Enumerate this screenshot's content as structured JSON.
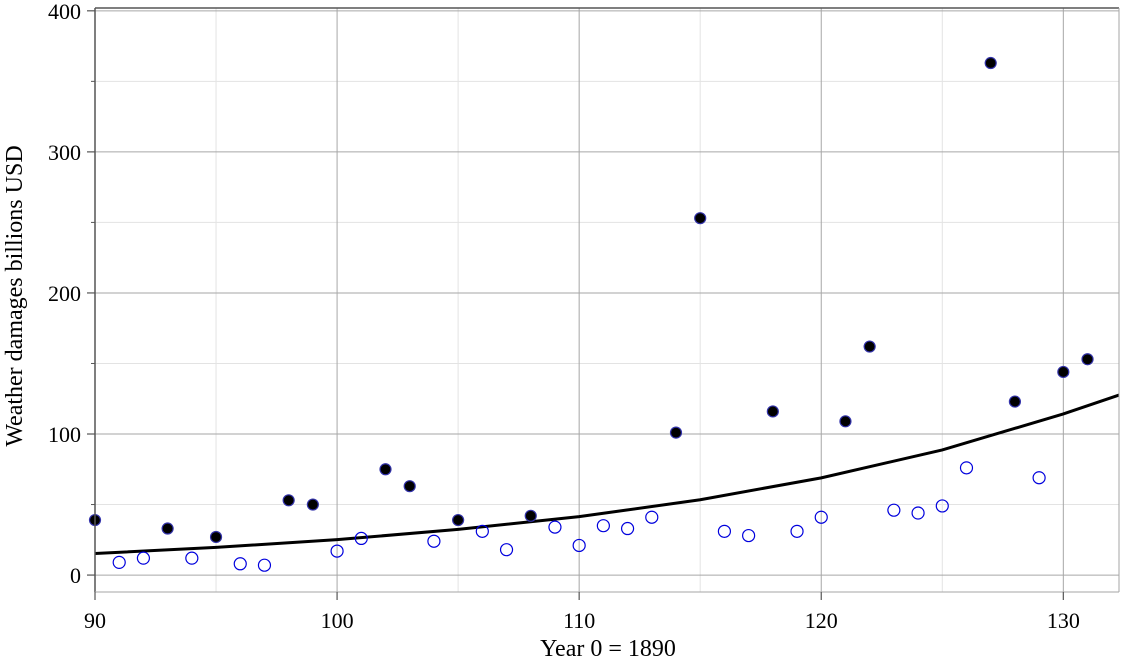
{
  "chart_data": {
    "type": "scatter",
    "title": "",
    "xlabel": "Year 0 = 1890",
    "ylabel": "Weather damages billions USD",
    "xlim": [
      90,
      132.3
    ],
    "ylim": [
      -12,
      402
    ],
    "x_ticks": [
      90,
      100,
      110,
      120,
      130
    ],
    "x_tick_labels": [
      "90",
      "100",
      "110",
      "120",
      "130"
    ],
    "y_ticks": [
      0,
      100,
      200,
      300,
      400
    ],
    "y_tick_labels": [
      "0",
      "100",
      "200",
      "300",
      "400"
    ],
    "grid": true,
    "legend": "none",
    "series": [
      {
        "marker": "open-circle",
        "x": [
          91,
          92,
          94,
          96,
          97,
          100,
          101,
          104,
          106,
          107,
          109,
          110,
          111,
          112,
          113,
          116,
          117,
          119,
          120,
          123,
          124,
          125,
          126,
          129
        ],
        "y": [
          9,
          12,
          12,
          8,
          7,
          17,
          26,
          24,
          31,
          18,
          34,
          21,
          35,
          33,
          41,
          31,
          28,
          31,
          41,
          46,
          44,
          49,
          76,
          69
        ]
      },
      {
        "marker": "filled-circle",
        "x": [
          90,
          93,
          95,
          98,
          99,
          102,
          103,
          105,
          108,
          114,
          115,
          118,
          121,
          122,
          127,
          128,
          130,
          131
        ],
        "y": [
          39,
          33,
          27,
          53,
          50,
          75,
          63,
          39,
          42,
          101,
          253,
          116,
          109,
          162,
          363,
          123,
          144,
          153
        ]
      }
    ],
    "trend_curve": {
      "type": "exponential",
      "x": [
        90,
        95,
        100,
        105,
        110,
        115,
        120,
        125,
        130,
        132.3
      ],
      "y": [
        15.3,
        19.6,
        25.1,
        32.4,
        41.4,
        53.4,
        68.9,
        88.7,
        114.2,
        127.6
      ]
    },
    "colors": {
      "open_marker": "#0000dd",
      "filled_marker": "#000000",
      "filled_marker_edge": "#3333aa",
      "trend_line": "#000000",
      "major_grid": "#a6a6a6",
      "minor_grid": "#e3e3e3",
      "axes": "#555555"
    }
  }
}
